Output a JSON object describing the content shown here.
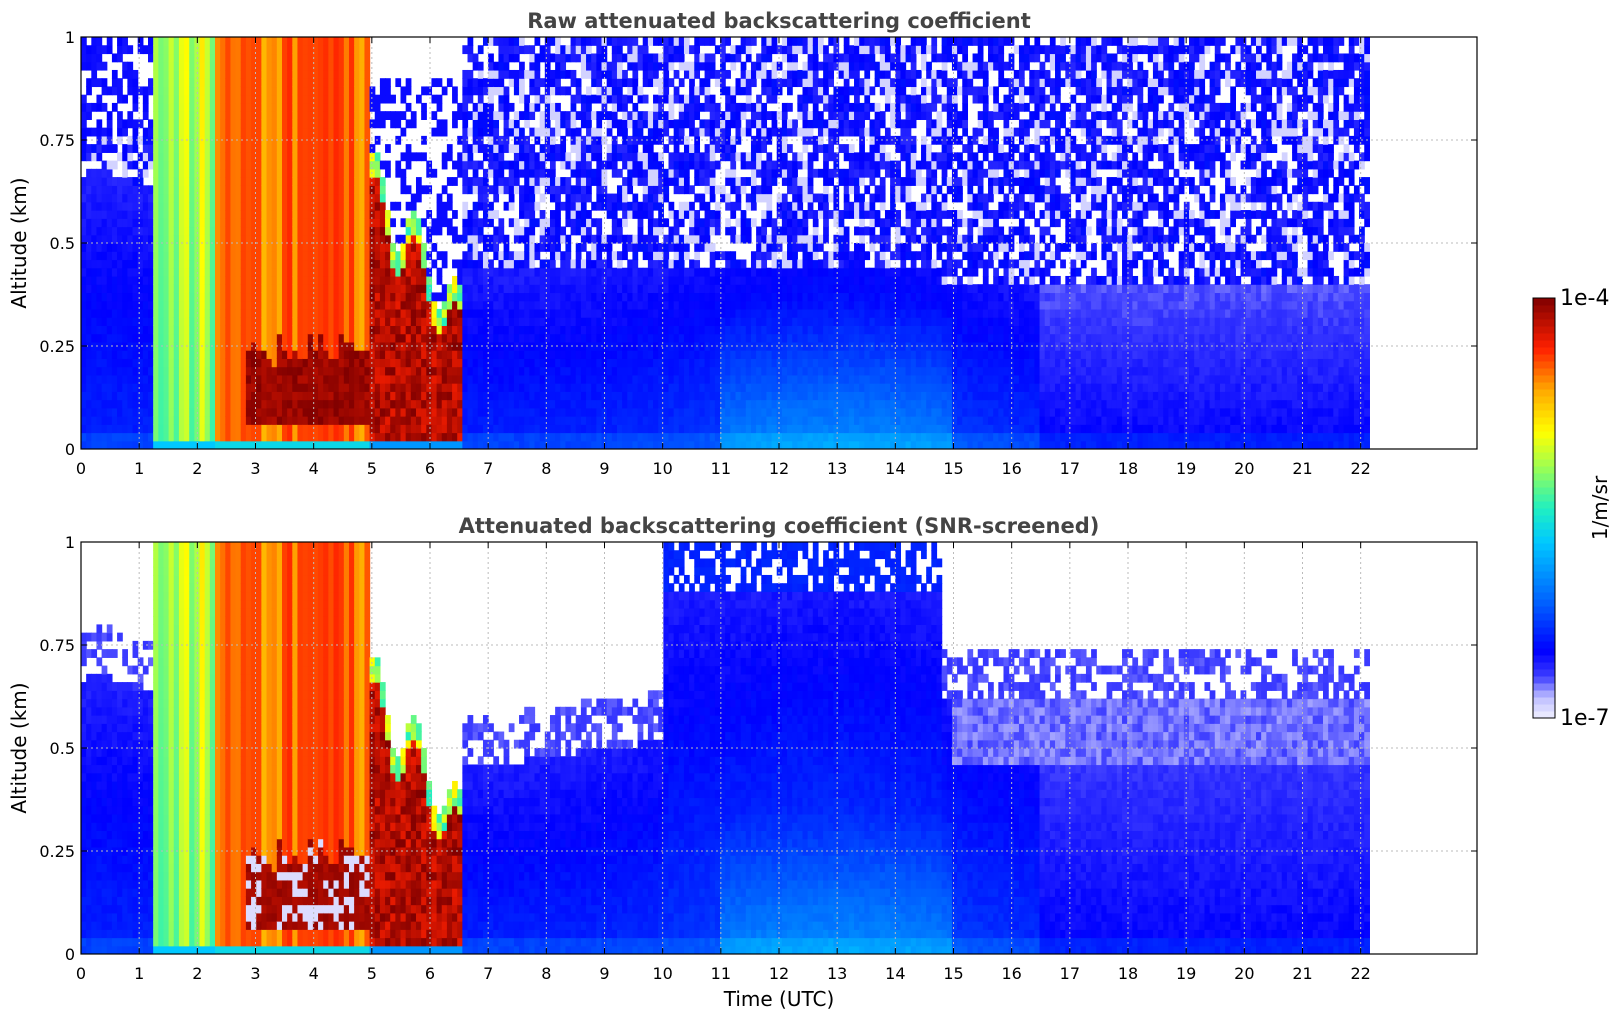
{
  "chart_data": [
    {
      "type": "heatmap",
      "title": "Raw attenuated backscattering coefficient",
      "xlabel": "",
      "ylabel": "Altitude (km)",
      "xlim": [
        0,
        24
      ],
      "ylim": [
        0,
        1
      ],
      "x_ticks": [
        "0",
        "1",
        "2",
        "3",
        "4",
        "5",
        "6",
        "7",
        "8",
        "9",
        "10",
        "11",
        "12",
        "13",
        "14",
        "15",
        "16",
        "17",
        "18",
        "19",
        "20",
        "21",
        "22"
      ],
      "y_ticks": [
        "0",
        "0.25",
        "0.5",
        "0.75",
        "1"
      ],
      "data_x_range": [
        0,
        22.15
      ],
      "grid": true,
      "regions": [
        {
          "x": [
            0,
            1.2
          ],
          "y": [
            0,
            1
          ],
          "level": "low (1e-7 to 1e-6)",
          "note": "blue boundary layer up to ~0.7 km, noisy above"
        },
        {
          "x": [
            1.2,
            2.3
          ],
          "y": [
            0,
            1
          ],
          "level": "mid (~5e-6)",
          "note": "cyan/green/yellow column"
        },
        {
          "x": [
            2.3,
            4.9
          ],
          "y": [
            0,
            1
          ],
          "level": "high (~2e-5 to 1e-4)",
          "note": "orange/red column, dark red layer near 0.1-0.2 km"
        },
        {
          "x": [
            5.0,
            6.5
          ],
          "y": [
            0,
            0.6
          ],
          "level": "high",
          "note": "dark red cloud layer, top descending from ~0.6 to ~0.25 km"
        },
        {
          "x": [
            6.5,
            22.15
          ],
          "y": [
            0,
            0.5
          ],
          "level": "low (~5e-7 to 2e-6)",
          "note": "blue aerosol layer, noisy above ~0.4 km"
        }
      ]
    },
    {
      "type": "heatmap",
      "title": "Attenuated backscattering coefficient (SNR-screened)",
      "xlabel": "Time (UTC)",
      "ylabel": "Altitude (km)",
      "xlim": [
        0,
        24
      ],
      "ylim": [
        0,
        1
      ],
      "x_ticks": [
        "0",
        "1",
        "2",
        "3",
        "4",
        "5",
        "6",
        "7",
        "8",
        "9",
        "10",
        "11",
        "12",
        "13",
        "14",
        "15",
        "16",
        "17",
        "18",
        "19",
        "20",
        "21",
        "22"
      ],
      "y_ticks": [
        "0",
        "0.25",
        "0.5",
        "0.75",
        "1"
      ],
      "data_x_range": [
        0,
        22.15
      ],
      "grid": true,
      "regions": [
        {
          "x": [
            0,
            1.2
          ],
          "y": [
            0,
            0.75
          ],
          "level": "low",
          "note": "blue, screened above ~0.75 km"
        },
        {
          "x": [
            1.2,
            4.9
          ],
          "y": [
            0,
            1
          ],
          "level": "mid to high",
          "note": "same as raw"
        },
        {
          "x": [
            6.5,
            10
          ],
          "y": [
            0,
            0.55
          ],
          "level": "low",
          "note": "blue, screened above"
        },
        {
          "x": [
            10,
            14.8
          ],
          "y": [
            0,
            1
          ],
          "level": "low",
          "note": "blue up to ~0.9-1 km"
        },
        {
          "x": [
            14.8,
            22.15
          ],
          "y": [
            0,
            0.7
          ],
          "level": "low",
          "note": "blue, faint above ~0.45 km"
        }
      ]
    }
  ],
  "colorbar": {
    "max_label": "1e-4",
    "min_label": "1e-7",
    "unit_label": "1/m/sr",
    "scale": "log",
    "range": [
      1e-07,
      0.0001
    ],
    "colormap": "jet"
  }
}
